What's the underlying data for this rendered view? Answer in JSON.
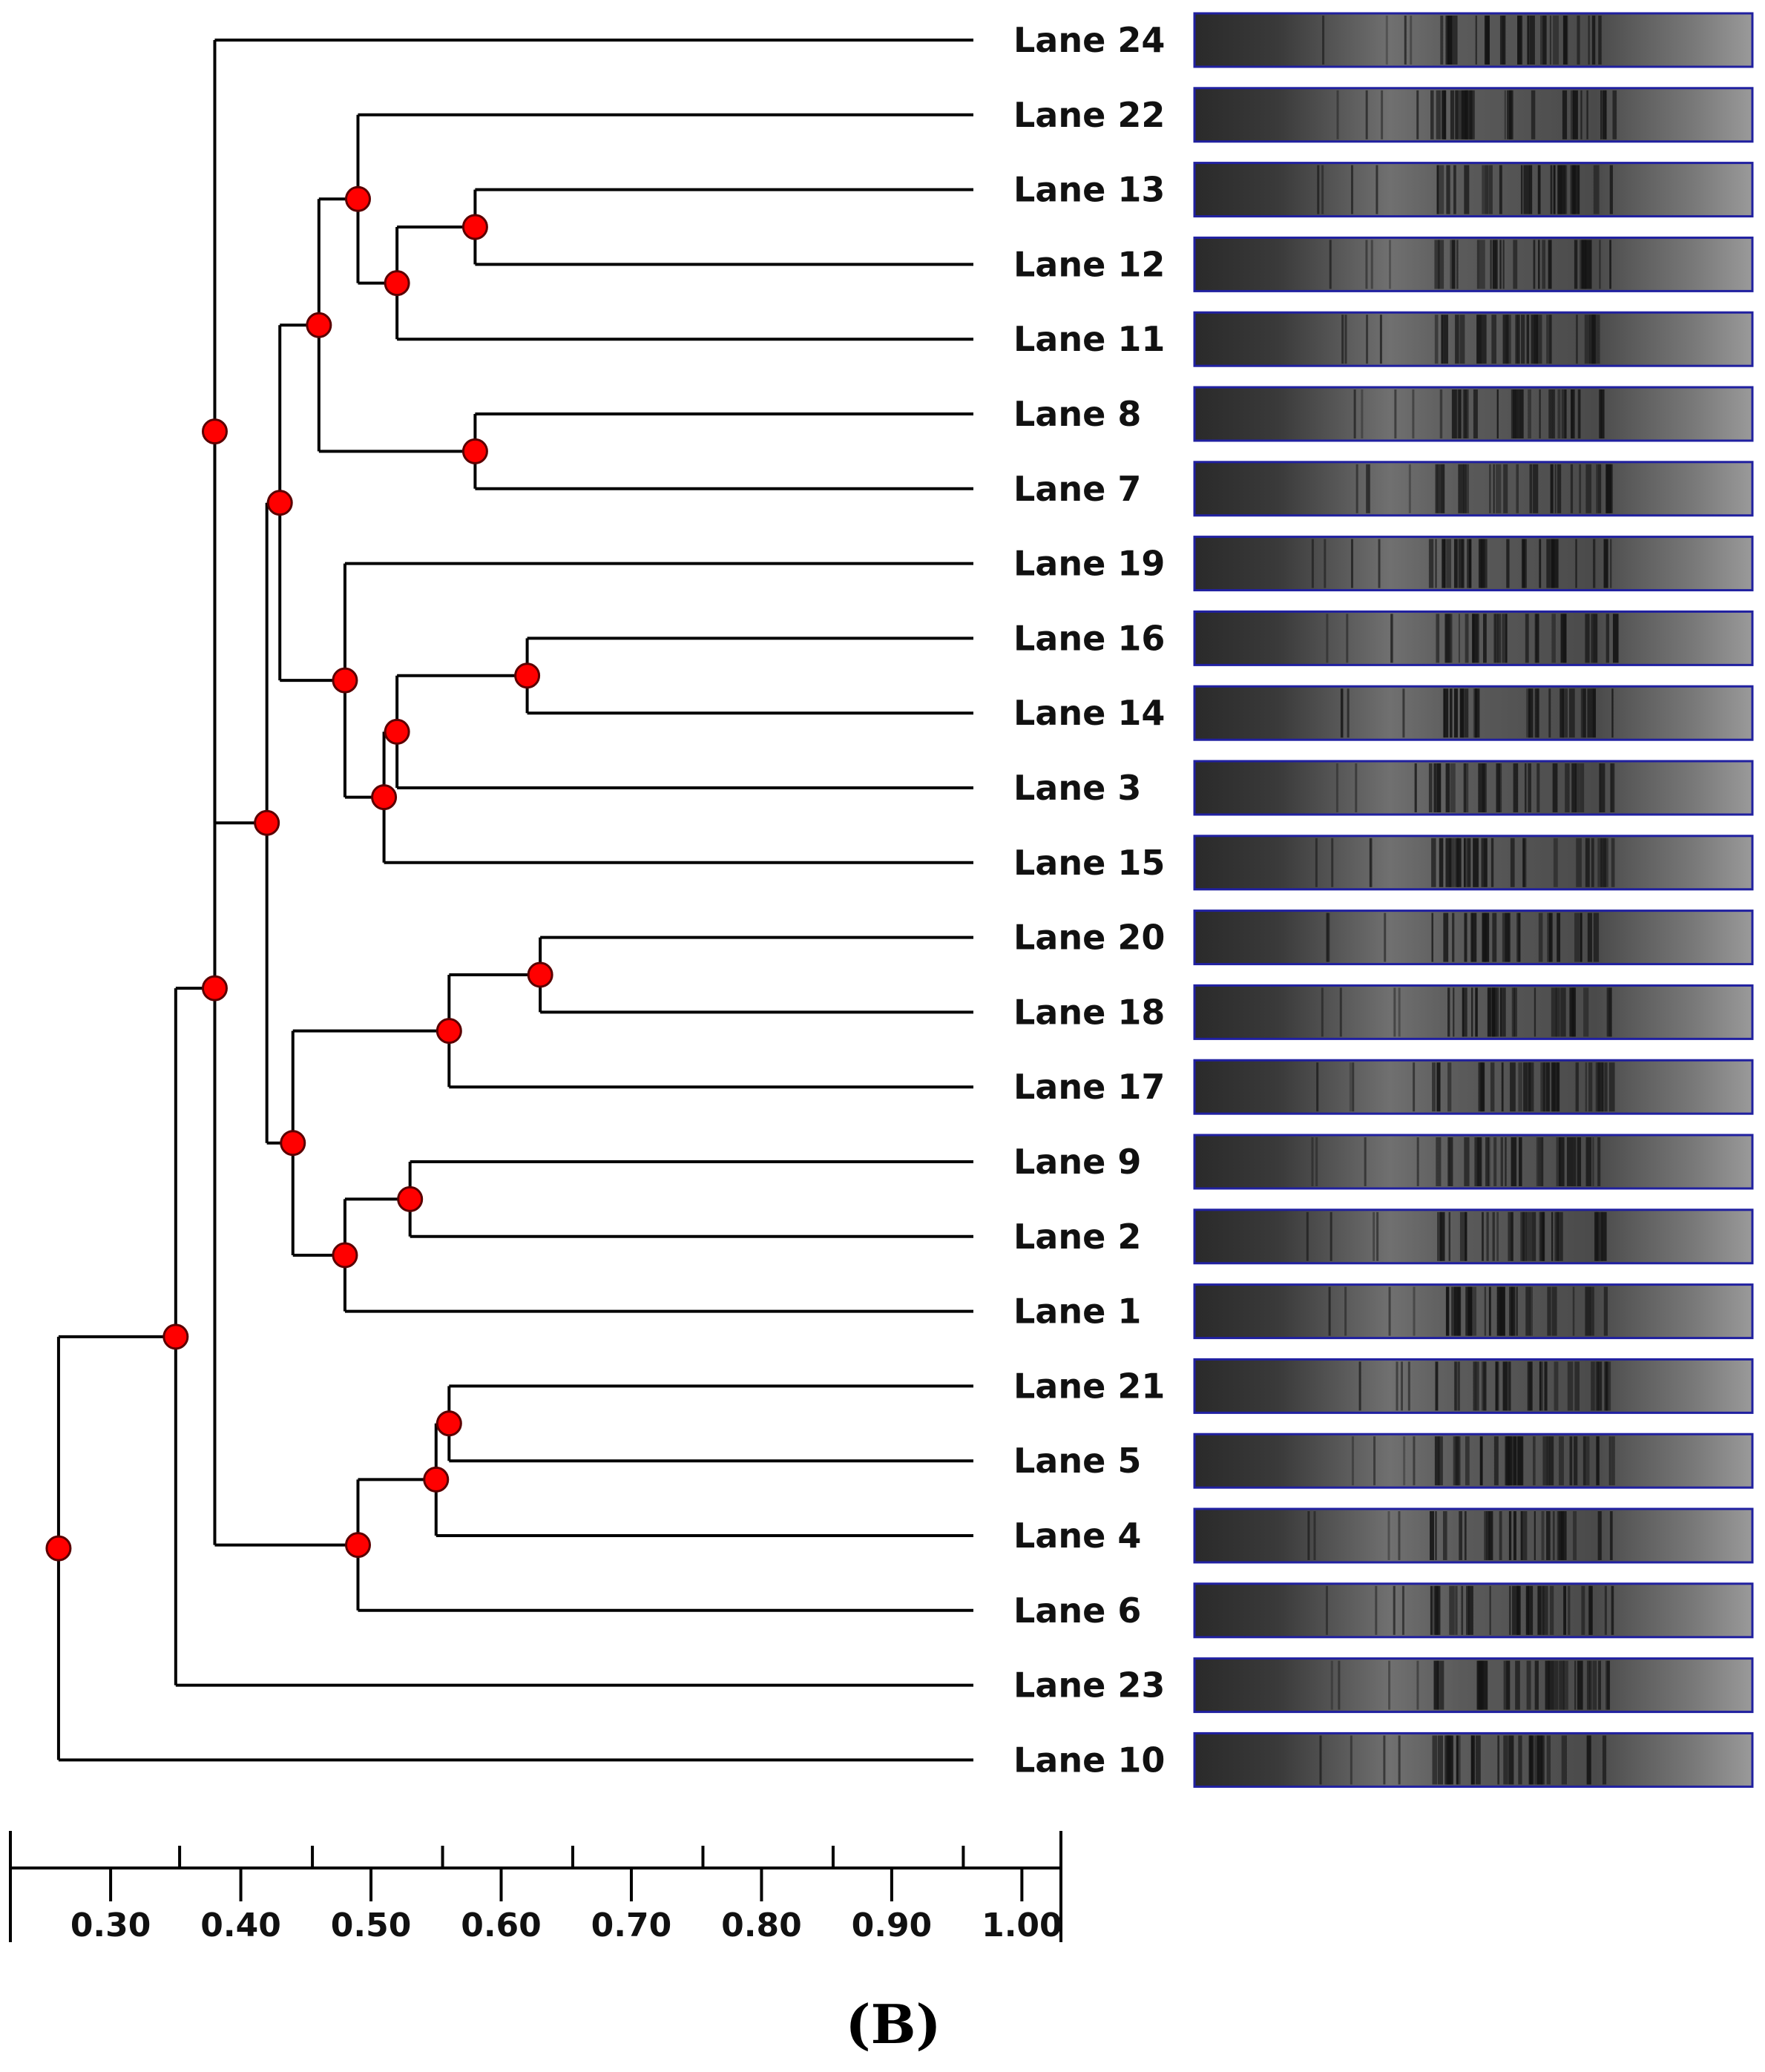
{
  "colors": {
    "line": "#000000",
    "node": "#ff0000",
    "frame": "#2020a0",
    "gel_bg": "#8c8c8c",
    "band": "#141414"
  },
  "panel_label": "(B)",
  "chart_data": {
    "type": "dendrogram",
    "title": "",
    "xlabel": "",
    "xlim": [
      0.223,
      1.03
    ],
    "axis_ticks": [
      0.3,
      0.4,
      0.5,
      0.6,
      0.7,
      0.8,
      0.9,
      1.0
    ],
    "axis_tick_labels": [
      "0.30",
      "0.40",
      "0.50",
      "0.60",
      "0.70",
      "0.80",
      "0.90",
      "1.00"
    ],
    "minor_ticks": [
      0.353,
      0.455,
      0.555,
      0.655,
      0.755,
      0.855,
      0.955
    ],
    "leaves": [
      "Lane 24",
      "Lane 22",
      "Lane 13",
      "Lane 12",
      "Lane 11",
      "Lane 8",
      "Lane 7",
      "Lane 19",
      "Lane 16",
      "Lane 14",
      "Lane 3",
      "Lane 15",
      "Lane 20",
      "Lane 18",
      "Lane 17",
      "Lane 9",
      "Lane 2",
      "Lane 1",
      "Lane 21",
      "Lane 5",
      "Lane 4",
      "Lane 6",
      "Lane 23",
      "Lane 10"
    ],
    "merges": [
      {
        "id": "n1",
        "similarity": 0.58,
        "children": [
          "Lane 13",
          "Lane 12"
        ]
      },
      {
        "id": "n2",
        "similarity": 0.52,
        "children": [
          "n1",
          "Lane 11"
        ]
      },
      {
        "id": "n3",
        "similarity": 0.49,
        "children": [
          "Lane 22",
          "n2"
        ]
      },
      {
        "id": "n4",
        "similarity": 0.58,
        "children": [
          "Lane 8",
          "Lane 7"
        ]
      },
      {
        "id": "n5",
        "similarity": 0.46,
        "children": [
          "n3",
          "n4"
        ]
      },
      {
        "id": "n6",
        "similarity": 0.62,
        "children": [
          "Lane 16",
          "Lane 14"
        ]
      },
      {
        "id": "n7",
        "similarity": 0.52,
        "children": [
          "n6",
          "Lane 3"
        ]
      },
      {
        "id": "n8",
        "similarity": 0.51,
        "children": [
          "n7",
          "Lane 15"
        ]
      },
      {
        "id": "n9",
        "similarity": 0.48,
        "children": [
          "Lane 19",
          "n8"
        ]
      },
      {
        "id": "n10",
        "similarity": 0.43,
        "children": [
          "n5",
          "n9"
        ]
      },
      {
        "id": "n11",
        "similarity": 0.63,
        "children": [
          "Lane 20",
          "Lane 18"
        ]
      },
      {
        "id": "n12",
        "similarity": 0.56,
        "children": [
          "n11",
          "Lane 17"
        ]
      },
      {
        "id": "n13",
        "similarity": 0.53,
        "children": [
          "Lane 9",
          "Lane 2"
        ]
      },
      {
        "id": "n14",
        "similarity": 0.48,
        "children": [
          "n13",
          "Lane 1"
        ]
      },
      {
        "id": "n15",
        "similarity": 0.44,
        "children": [
          "n12",
          "n14"
        ]
      },
      {
        "id": "n16",
        "similarity": 0.42,
        "children": [
          "n10",
          "n15"
        ]
      },
      {
        "id": "n17",
        "similarity": 0.38,
        "children": [
          "Lane 24",
          "n16"
        ]
      },
      {
        "id": "n18",
        "similarity": 0.56,
        "children": [
          "Lane 21",
          "Lane 5"
        ]
      },
      {
        "id": "n19",
        "similarity": 0.55,
        "children": [
          "n18",
          "Lane 4"
        ]
      },
      {
        "id": "n20",
        "similarity": 0.49,
        "children": [
          "n19",
          "Lane 6"
        ]
      },
      {
        "id": "n21",
        "similarity": 0.38,
        "children": [
          "n17",
          "n20"
        ]
      },
      {
        "id": "n22",
        "similarity": 0.35,
        "children": [
          "n21",
          "Lane 23"
        ]
      },
      {
        "id": "n23",
        "similarity": 0.26,
        "children": [
          "n22",
          "Lane 10"
        ]
      }
    ]
  }
}
